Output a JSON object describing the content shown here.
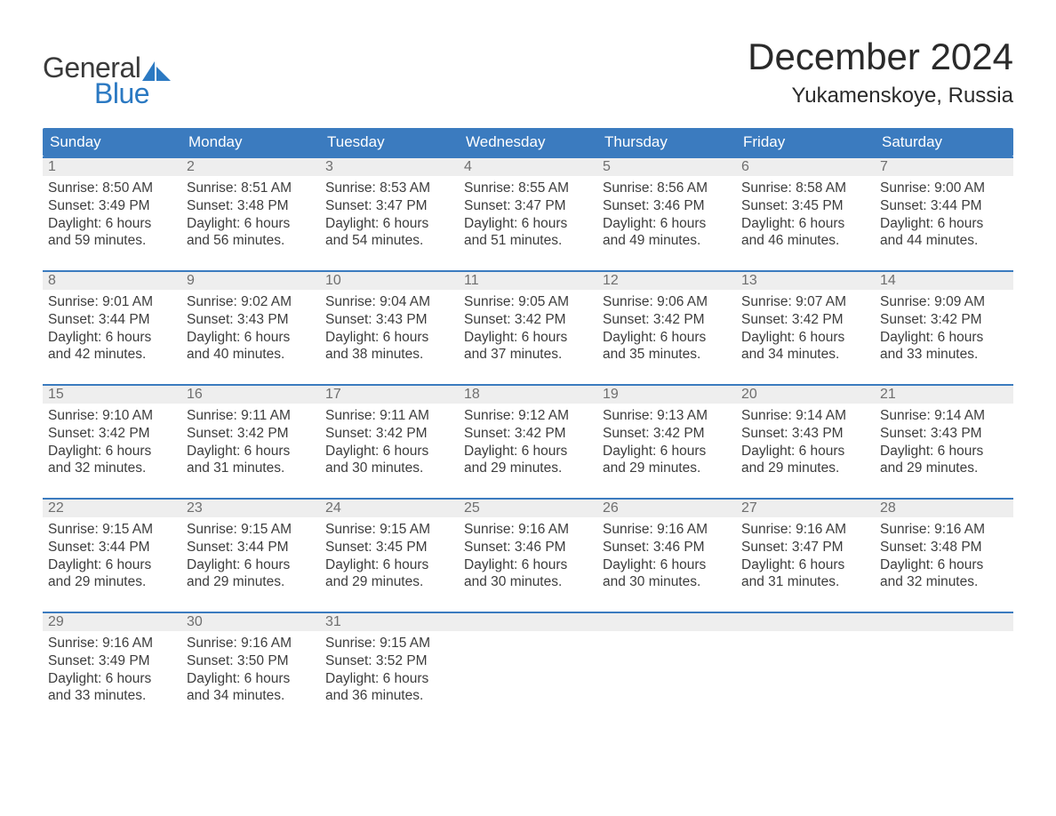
{
  "brand": {
    "top": "General",
    "bottom": "Blue",
    "text_color_top": "#3a3a3a",
    "text_color_bottom": "#2b79c2",
    "sail_color": "#2b79c2"
  },
  "title": "December 2024",
  "location": "Yukamenskoye, Russia",
  "colors": {
    "header_bg": "#3b7bbf",
    "header_text": "#ffffff",
    "daynum_bg": "#eeeeee",
    "daynum_text": "#6f6f6f",
    "day_border_top": "#3b7bbf",
    "body_text": "#3d3d3d",
    "page_bg": "#ffffff"
  },
  "weekdays": [
    "Sunday",
    "Monday",
    "Tuesday",
    "Wednesday",
    "Thursday",
    "Friday",
    "Saturday"
  ],
  "weeks": [
    [
      {
        "num": "1",
        "sunrise": "Sunrise: 8:50 AM",
        "sunset": "Sunset: 3:49 PM",
        "dl1": "Daylight: 6 hours",
        "dl2": "and 59 minutes."
      },
      {
        "num": "2",
        "sunrise": "Sunrise: 8:51 AM",
        "sunset": "Sunset: 3:48 PM",
        "dl1": "Daylight: 6 hours",
        "dl2": "and 56 minutes."
      },
      {
        "num": "3",
        "sunrise": "Sunrise: 8:53 AM",
        "sunset": "Sunset: 3:47 PM",
        "dl1": "Daylight: 6 hours",
        "dl2": "and 54 minutes."
      },
      {
        "num": "4",
        "sunrise": "Sunrise: 8:55 AM",
        "sunset": "Sunset: 3:47 PM",
        "dl1": "Daylight: 6 hours",
        "dl2": "and 51 minutes."
      },
      {
        "num": "5",
        "sunrise": "Sunrise: 8:56 AM",
        "sunset": "Sunset: 3:46 PM",
        "dl1": "Daylight: 6 hours",
        "dl2": "and 49 minutes."
      },
      {
        "num": "6",
        "sunrise": "Sunrise: 8:58 AM",
        "sunset": "Sunset: 3:45 PM",
        "dl1": "Daylight: 6 hours",
        "dl2": "and 46 minutes."
      },
      {
        "num": "7",
        "sunrise": "Sunrise: 9:00 AM",
        "sunset": "Sunset: 3:44 PM",
        "dl1": "Daylight: 6 hours",
        "dl2": "and 44 minutes."
      }
    ],
    [
      {
        "num": "8",
        "sunrise": "Sunrise: 9:01 AM",
        "sunset": "Sunset: 3:44 PM",
        "dl1": "Daylight: 6 hours",
        "dl2": "and 42 minutes."
      },
      {
        "num": "9",
        "sunrise": "Sunrise: 9:02 AM",
        "sunset": "Sunset: 3:43 PM",
        "dl1": "Daylight: 6 hours",
        "dl2": "and 40 minutes."
      },
      {
        "num": "10",
        "sunrise": "Sunrise: 9:04 AM",
        "sunset": "Sunset: 3:43 PM",
        "dl1": "Daylight: 6 hours",
        "dl2": "and 38 minutes."
      },
      {
        "num": "11",
        "sunrise": "Sunrise: 9:05 AM",
        "sunset": "Sunset: 3:42 PM",
        "dl1": "Daylight: 6 hours",
        "dl2": "and 37 minutes."
      },
      {
        "num": "12",
        "sunrise": "Sunrise: 9:06 AM",
        "sunset": "Sunset: 3:42 PM",
        "dl1": "Daylight: 6 hours",
        "dl2": "and 35 minutes."
      },
      {
        "num": "13",
        "sunrise": "Sunrise: 9:07 AM",
        "sunset": "Sunset: 3:42 PM",
        "dl1": "Daylight: 6 hours",
        "dl2": "and 34 minutes."
      },
      {
        "num": "14",
        "sunrise": "Sunrise: 9:09 AM",
        "sunset": "Sunset: 3:42 PM",
        "dl1": "Daylight: 6 hours",
        "dl2": "and 33 minutes."
      }
    ],
    [
      {
        "num": "15",
        "sunrise": "Sunrise: 9:10 AM",
        "sunset": "Sunset: 3:42 PM",
        "dl1": "Daylight: 6 hours",
        "dl2": "and 32 minutes."
      },
      {
        "num": "16",
        "sunrise": "Sunrise: 9:11 AM",
        "sunset": "Sunset: 3:42 PM",
        "dl1": "Daylight: 6 hours",
        "dl2": "and 31 minutes."
      },
      {
        "num": "17",
        "sunrise": "Sunrise: 9:11 AM",
        "sunset": "Sunset: 3:42 PM",
        "dl1": "Daylight: 6 hours",
        "dl2": "and 30 minutes."
      },
      {
        "num": "18",
        "sunrise": "Sunrise: 9:12 AM",
        "sunset": "Sunset: 3:42 PM",
        "dl1": "Daylight: 6 hours",
        "dl2": "and 29 minutes."
      },
      {
        "num": "19",
        "sunrise": "Sunrise: 9:13 AM",
        "sunset": "Sunset: 3:42 PM",
        "dl1": "Daylight: 6 hours",
        "dl2": "and 29 minutes."
      },
      {
        "num": "20",
        "sunrise": "Sunrise: 9:14 AM",
        "sunset": "Sunset: 3:43 PM",
        "dl1": "Daylight: 6 hours",
        "dl2": "and 29 minutes."
      },
      {
        "num": "21",
        "sunrise": "Sunrise: 9:14 AM",
        "sunset": "Sunset: 3:43 PM",
        "dl1": "Daylight: 6 hours",
        "dl2": "and 29 minutes."
      }
    ],
    [
      {
        "num": "22",
        "sunrise": "Sunrise: 9:15 AM",
        "sunset": "Sunset: 3:44 PM",
        "dl1": "Daylight: 6 hours",
        "dl2": "and 29 minutes."
      },
      {
        "num": "23",
        "sunrise": "Sunrise: 9:15 AM",
        "sunset": "Sunset: 3:44 PM",
        "dl1": "Daylight: 6 hours",
        "dl2": "and 29 minutes."
      },
      {
        "num": "24",
        "sunrise": "Sunrise: 9:15 AM",
        "sunset": "Sunset: 3:45 PM",
        "dl1": "Daylight: 6 hours",
        "dl2": "and 29 minutes."
      },
      {
        "num": "25",
        "sunrise": "Sunrise: 9:16 AM",
        "sunset": "Sunset: 3:46 PM",
        "dl1": "Daylight: 6 hours",
        "dl2": "and 30 minutes."
      },
      {
        "num": "26",
        "sunrise": "Sunrise: 9:16 AM",
        "sunset": "Sunset: 3:46 PM",
        "dl1": "Daylight: 6 hours",
        "dl2": "and 30 minutes."
      },
      {
        "num": "27",
        "sunrise": "Sunrise: 9:16 AM",
        "sunset": "Sunset: 3:47 PM",
        "dl1": "Daylight: 6 hours",
        "dl2": "and 31 minutes."
      },
      {
        "num": "28",
        "sunrise": "Sunrise: 9:16 AM",
        "sunset": "Sunset: 3:48 PM",
        "dl1": "Daylight: 6 hours",
        "dl2": "and 32 minutes."
      }
    ],
    [
      {
        "num": "29",
        "sunrise": "Sunrise: 9:16 AM",
        "sunset": "Sunset: 3:49 PM",
        "dl1": "Daylight: 6 hours",
        "dl2": "and 33 minutes."
      },
      {
        "num": "30",
        "sunrise": "Sunrise: 9:16 AM",
        "sunset": "Sunset: 3:50 PM",
        "dl1": "Daylight: 6 hours",
        "dl2": "and 34 minutes."
      },
      {
        "num": "31",
        "sunrise": "Sunrise: 9:15 AM",
        "sunset": "Sunset: 3:52 PM",
        "dl1": "Daylight: 6 hours",
        "dl2": "and 36 minutes."
      },
      {
        "empty": true
      },
      {
        "empty": true
      },
      {
        "empty": true
      },
      {
        "empty": true
      }
    ]
  ]
}
